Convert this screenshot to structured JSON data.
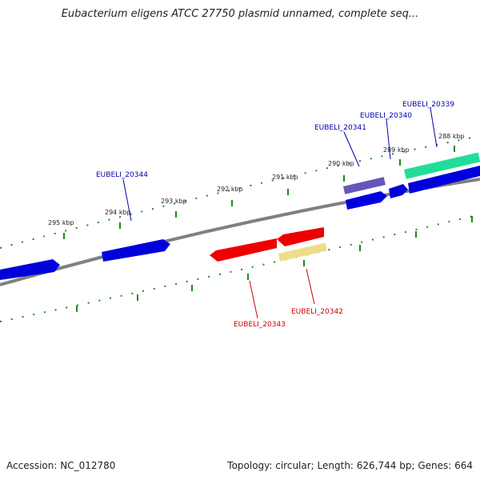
{
  "title": "Eubacterium eligens ATCC 27750 plasmid unnamed, complete seq...",
  "footer": {
    "accession": "Accession: NC_012780",
    "summary": "Topology: circular; Length: 626,744 bp; Genes: 664"
  },
  "ticks": [
    {
      "label": "295 kbp"
    },
    {
      "label": "294 kbp"
    },
    {
      "label": "293 kbp"
    },
    {
      "label": "292 kbp"
    },
    {
      "label": "291 kbp"
    },
    {
      "label": "290 kbp"
    },
    {
      "label": "289 kbp"
    },
    {
      "label": "288 kbp"
    }
  ],
  "gene_labels": [
    {
      "text": "EUBELI_20339",
      "color": "#0000aa"
    },
    {
      "text": "EUBELI_20340",
      "color": "#0000aa"
    },
    {
      "text": "EUBELI_20341",
      "color": "#0000aa"
    },
    {
      "text": "EUBELI_20344",
      "color": "#0000aa"
    },
    {
      "text": "EUBELI_20342",
      "color": "#cc0000"
    },
    {
      "text": "EUBELI_20343",
      "color": "#cc0000"
    }
  ],
  "colors": {
    "backbone": "#808080",
    "tick_marks": "#228822",
    "forward_gene": "#0000dd",
    "reverse_gene": "#ee0000",
    "rna_gene": "#22dd99",
    "pseudo_gene_purple": "#6655bb",
    "pseudo_gene_yellow": "#eedd88"
  }
}
